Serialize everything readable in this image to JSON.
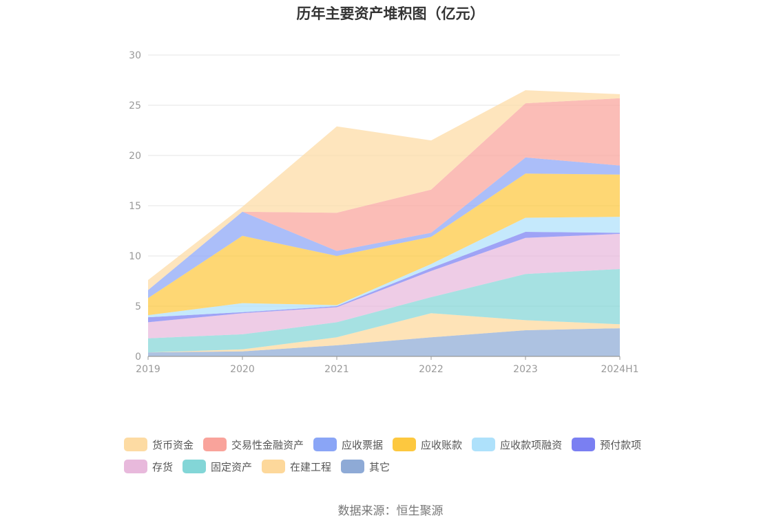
{
  "chart_data": {
    "type": "area",
    "stacked": true,
    "title": "历年主要资产堆积图（亿元）",
    "x": [
      "2019",
      "2020",
      "2021",
      "2022",
      "2023",
      "2024H1"
    ],
    "yticks": [
      "0",
      "5",
      "10",
      "15",
      "20",
      "25",
      "30"
    ],
    "ylim": [
      0,
      30
    ],
    "grid": true,
    "legend_position": "bottom",
    "series": [
      {
        "name": "其它",
        "color": "#8eaad6",
        "values": [
          0.4,
          0.5,
          1.1,
          1.9,
          2.6,
          2.8
        ]
      },
      {
        "name": "在建工程",
        "color": "#fdd89b",
        "values": [
          0.0,
          0.2,
          0.8,
          2.4,
          1.0,
          0.4
        ]
      },
      {
        "name": "固定资产",
        "color": "#83d6d7",
        "values": [
          1.4,
          1.5,
          1.5,
          1.6,
          4.6,
          5.5
        ]
      },
      {
        "name": "存货",
        "color": "#e8b9dc",
        "values": [
          1.6,
          2.1,
          1.5,
          2.6,
          3.6,
          3.5
        ]
      },
      {
        "name": "预付款项",
        "color": "#7a7ff2",
        "values": [
          0.5,
          0.1,
          0.1,
          0.3,
          0.6,
          0.1
        ]
      },
      {
        "name": "应收款项融资",
        "color": "#aee1fb",
        "values": [
          0.2,
          0.9,
          0.1,
          0.4,
          1.4,
          1.6
        ]
      },
      {
        "name": "应收账款",
        "color": "#fdc83f",
        "values": [
          1.7,
          6.7,
          4.9,
          2.7,
          4.4,
          4.2
        ]
      },
      {
        "name": "应收票据",
        "color": "#8aa5f6",
        "values": [
          0.8,
          2.4,
          0.5,
          0.4,
          1.6,
          0.9
        ]
      },
      {
        "name": "交易性金融资产",
        "color": "#f9a39b",
        "values": [
          0.0,
          0.0,
          3.8,
          4.3,
          5.4,
          6.7
        ]
      },
      {
        "name": "货币资金",
        "color": "#fddba3",
        "values": [
          1.0,
          0.5,
          8.6,
          4.9,
          1.3,
          0.4
        ]
      }
    ]
  },
  "legend_order": [
    [
      "货币资金",
      "交易性金融资产",
      "应收票据",
      "应收账款",
      "应收款项融资",
      "预付款项"
    ],
    [
      "存货",
      "固定资产",
      "在建工程",
      "其它"
    ]
  ],
  "source": "数据来源：恒生聚源"
}
